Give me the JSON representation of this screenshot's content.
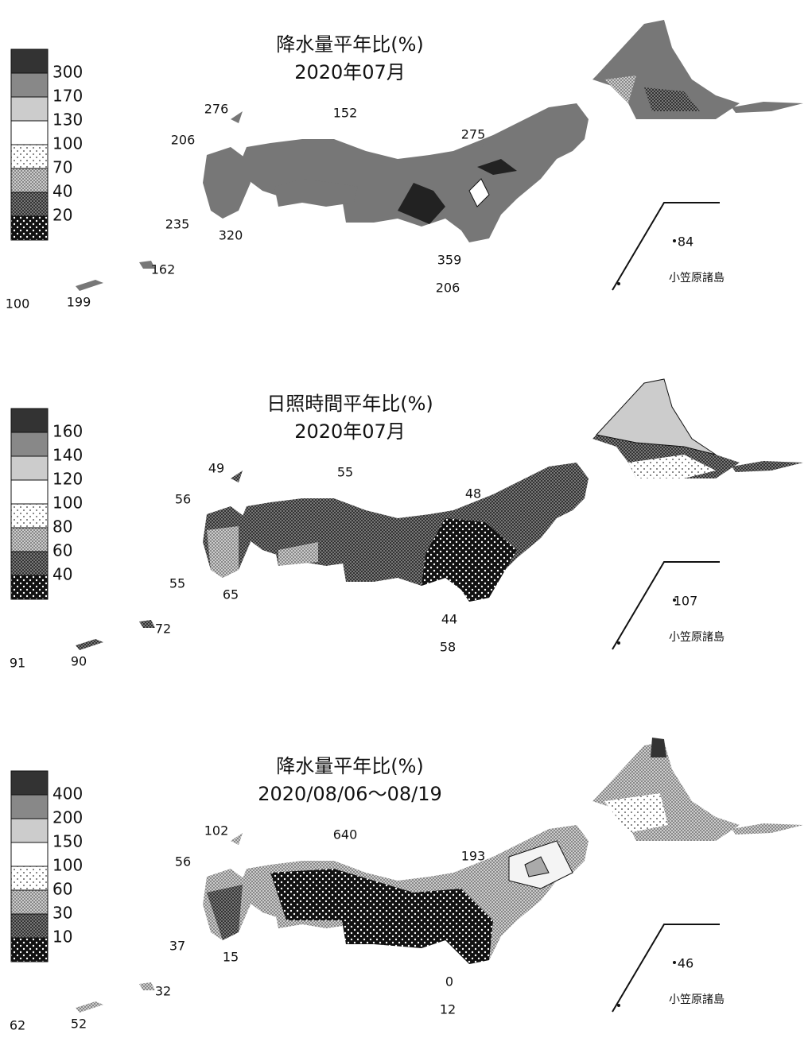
{
  "maps": [
    {
      "title": "降水量平年比(%)",
      "subtitle": "2020年07月",
      "legend": [
        300,
        170,
        130,
        100,
        70,
        40,
        20
      ],
      "labels": [
        276,
        206,
        152,
        275,
        235,
        320,
        359,
        206,
        162,
        199,
        100,
        84
      ],
      "inset_label": "小笠原諸島"
    },
    {
      "title": "日照時間平年比(%)",
      "subtitle": "2020年07月",
      "legend": [
        160,
        140,
        120,
        100,
        80,
        60,
        40
      ],
      "labels": [
        49,
        56,
        55,
        48,
        55,
        65,
        44,
        58,
        72,
        90,
        91,
        107
      ],
      "inset_label": "小笠原諸島"
    },
    {
      "title": "降水量平年比(%)",
      "subtitle": "2020/08/06～08/19",
      "legend": [
        400,
        200,
        150,
        100,
        60,
        30,
        10
      ],
      "labels": [
        102,
        56,
        640,
        193,
        37,
        15,
        0,
        12,
        32,
        52,
        62,
        46
      ],
      "inset_label": "小笠原諸島"
    }
  ]
}
